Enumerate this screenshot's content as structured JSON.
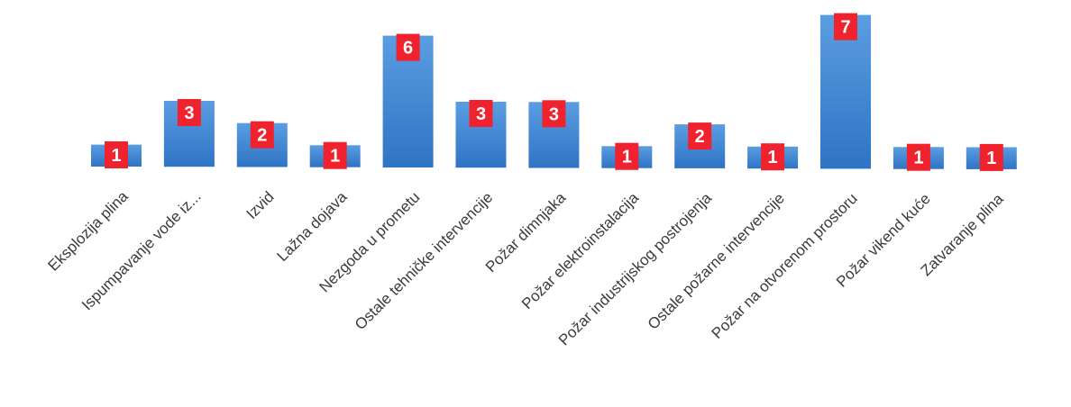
{
  "chart_data": {
    "type": "bar",
    "categories": [
      "Eksplozija plina",
      "Ispumpavanje vode iz...",
      "Izvid",
      "Lažna dojava",
      "Nezgoda u prometu",
      "Ostale tehničke intervencije",
      "Požar dimnjaka",
      "Požar elektroinstalacija",
      "Požar industrijskog postrojenja",
      "Ostale požarne intervencije",
      "Požar na otvorenom prostoru",
      "Požar vikend kuće",
      "Zatvaranje plina"
    ],
    "values": [
      1,
      3,
      2,
      1,
      6,
      3,
      3,
      1,
      2,
      1,
      7,
      1,
      1
    ],
    "data_labels": [
      "1",
      "3",
      "2",
      "1",
      "6",
      "3",
      "3",
      "1",
      "2",
      "1",
      "7",
      "1",
      "1"
    ],
    "title": "",
    "xlabel": "",
    "ylabel": "",
    "ylim": [
      0,
      7
    ],
    "grid": false,
    "legend": "none",
    "colors": {
      "bar": "#4a8fd8",
      "bar_dark": "#2f74c4",
      "data_label_background": "#f0222e",
      "data_label_text": "#ffffff",
      "tick_label": "#3b3b3b"
    }
  }
}
